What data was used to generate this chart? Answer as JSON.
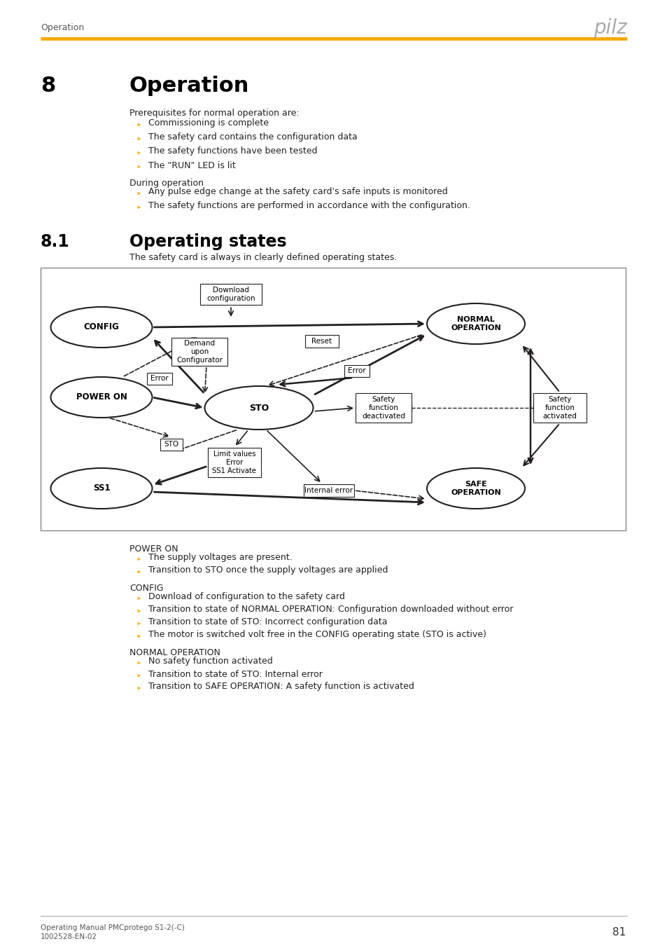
{
  "page_title_left": "Operation",
  "pilz_logo": "pilz",
  "orange_line_color": "#F5A800",
  "section_number": "8",
  "section_title": "Operation",
  "section_intro": "Prerequisites for normal operation are:",
  "prereq_bullets": [
    "Commissioning is complete",
    "The safety card contains the configuration data",
    "The safety functions have been tested",
    "The \"RUN\" LED is lit"
  ],
  "during_label": "During operation",
  "during_bullets": [
    "Any pulse edge change at the safety card's safe inputs is monitored",
    "The safety functions are performed in accordance with the configuration."
  ],
  "subsection_number": "8.1",
  "subsection_title": "Operating states",
  "subsection_intro": "The safety card is always in clearly defined operating states.",
  "footer_left1": "Operating Manual PMCprotego S1-2(-C)",
  "footer_left2": "1002528-EN-02",
  "footer_page": "81",
  "bullet_color": "#F5A800",
  "text_color": "#231F20",
  "gray_text": "#888888",
  "pilz_color": "#AAAAAA"
}
